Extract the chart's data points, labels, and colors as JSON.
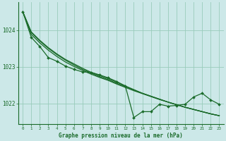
{
  "background_color": "#cce8e8",
  "grid_color": "#99ccbb",
  "line_color": "#1a6b2a",
  "xlabel": "Graphe pression niveau de la mer (hPa)",
  "xlim": [
    -0.5,
    23.5
  ],
  "ylim": [
    1021.45,
    1024.75
  ],
  "yticks": [
    1022,
    1023,
    1024
  ],
  "xticks": [
    0,
    1,
    2,
    3,
    4,
    5,
    6,
    7,
    8,
    9,
    10,
    11,
    12,
    13,
    14,
    15,
    16,
    17,
    18,
    19,
    20,
    21,
    22,
    23
  ],
  "hours": [
    0,
    1,
    2,
    3,
    4,
    5,
    6,
    7,
    8,
    9,
    10,
    11,
    12,
    13,
    14,
    15,
    16,
    17,
    18,
    19,
    20,
    21,
    22,
    23
  ],
  "line_measured": [
    1024.5,
    1023.8,
    1023.55,
    1023.25,
    1023.15,
    1023.02,
    1022.93,
    1022.86,
    1022.85,
    1022.78,
    1022.7,
    1022.6,
    1022.48,
    1021.62,
    1021.78,
    1021.78,
    1021.98,
    1021.93,
    1021.95,
    1021.98,
    1022.18,
    1022.28,
    1022.1,
    1021.98
  ],
  "line_trend1": [
    1024.5,
    1023.95,
    1023.72,
    1023.52,
    1023.35,
    1023.2,
    1023.08,
    1022.96,
    1022.85,
    1022.76,
    1022.68,
    1022.58,
    1022.48,
    1022.38,
    1022.28,
    1022.2,
    1022.12,
    1022.04,
    1021.97,
    1021.9,
    1021.84,
    1021.78,
    1021.72,
    1021.67
  ],
  "line_trend2": [
    1024.5,
    1023.93,
    1023.7,
    1023.5,
    1023.33,
    1023.18,
    1023.05,
    1022.93,
    1022.83,
    1022.73,
    1022.65,
    1022.55,
    1022.46,
    1022.37,
    1022.28,
    1022.2,
    1022.12,
    1022.04,
    1021.97,
    1021.9,
    1021.84,
    1021.78,
    1021.72,
    1021.67
  ],
  "line_trend3": [
    1024.5,
    1023.88,
    1023.65,
    1023.45,
    1023.28,
    1023.13,
    1023.01,
    1022.9,
    1022.8,
    1022.71,
    1022.63,
    1022.53,
    1022.44,
    1022.35,
    1022.27,
    1022.19,
    1022.11,
    1022.04,
    1021.97,
    1021.9,
    1021.84,
    1021.78,
    1021.72,
    1021.67
  ]
}
